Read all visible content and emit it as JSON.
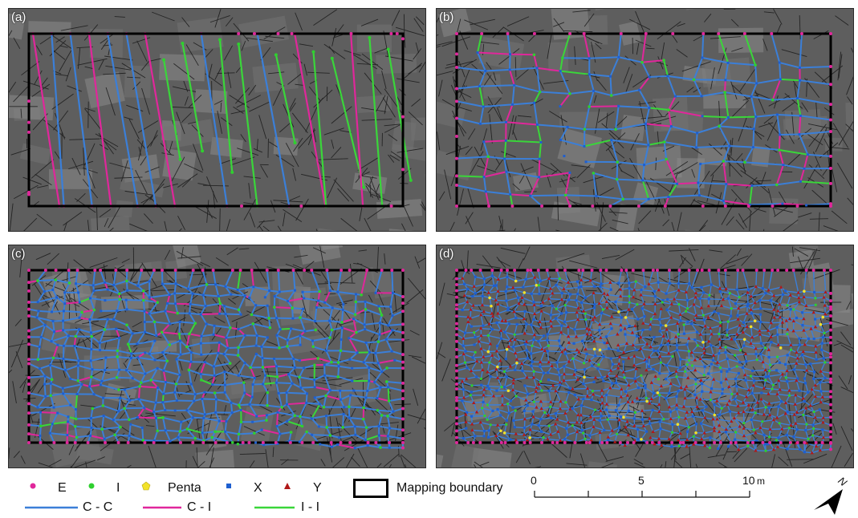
{
  "panels": [
    {
      "id": "a",
      "label": "(a)"
    },
    {
      "id": "b",
      "label": "(b)"
    },
    {
      "id": "c",
      "label": "(c)"
    },
    {
      "id": "d",
      "label": "(d)"
    }
  ],
  "legend": {
    "nodes": [
      {
        "label": "E",
        "color": "#e0279b",
        "shape": "circle"
      },
      {
        "label": "I",
        "color": "#2fd02f",
        "shape": "circle"
      },
      {
        "label": "Penta",
        "color": "#f2e22a",
        "shape": "pentagon"
      },
      {
        "label": "X",
        "color": "#1e5fd0",
        "shape": "square"
      },
      {
        "label": "Y",
        "color": "#b01818",
        "shape": "triangle"
      }
    ],
    "boundary_label": "Mapping boundary",
    "lines": [
      {
        "label": "C - C",
        "color": "#3b7fd8"
      },
      {
        "label": "C - I",
        "color": "#e0279b"
      },
      {
        "label": "I - I",
        "color": "#3ad63a"
      }
    ]
  },
  "scalebar": {
    "ticks": [
      "0",
      "5",
      "10"
    ],
    "unit": "m"
  },
  "north_arrow": {
    "label": "N"
  }
}
